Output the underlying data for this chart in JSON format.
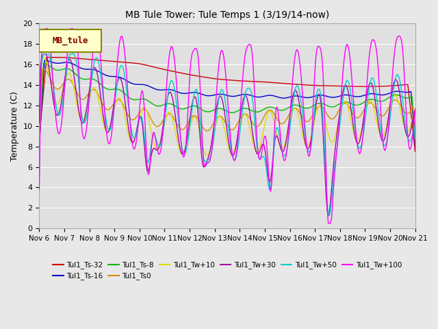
{
  "title": "MB Tule Tower: Tule Temps 1 (3/19/14-now)",
  "ylabel": "Temperature (C)",
  "ylim": [
    0,
    20
  ],
  "background_color": "#e8e8e8",
  "plot_bg_color": "#e0e0e0",
  "grid_color": "#ffffff",
  "x_tick_labels": [
    "Nov 6",
    "Nov 7",
    "Nov 8",
    "Nov 9",
    "Nov 10",
    "Nov 11",
    "Nov 12",
    "Nov 13",
    "Nov 14",
    "Nov 15",
    "Nov 16",
    "Nov 17",
    "Nov 18",
    "Nov 19",
    "Nov 20",
    "Nov 21"
  ],
  "series_colors": {
    "Tul1_Ts-32": "#cc0000",
    "Tul1_Ts-16": "#0000cc",
    "Tul1_Ts-8": "#00bb00",
    "Tul1_Ts0": "#dd8800",
    "Tul1_Tw+10": "#dddd00",
    "Tul1_Tw+30": "#aa00aa",
    "Tul1_Tw+50": "#00cccc",
    "Tul1_Tw+100": "#ff00ff"
  },
  "legend_box_color": "#ffffcc",
  "legend_box_edge": "#888800",
  "legend_box_text": "MB_tule",
  "legend_box_text_color": "#880000"
}
